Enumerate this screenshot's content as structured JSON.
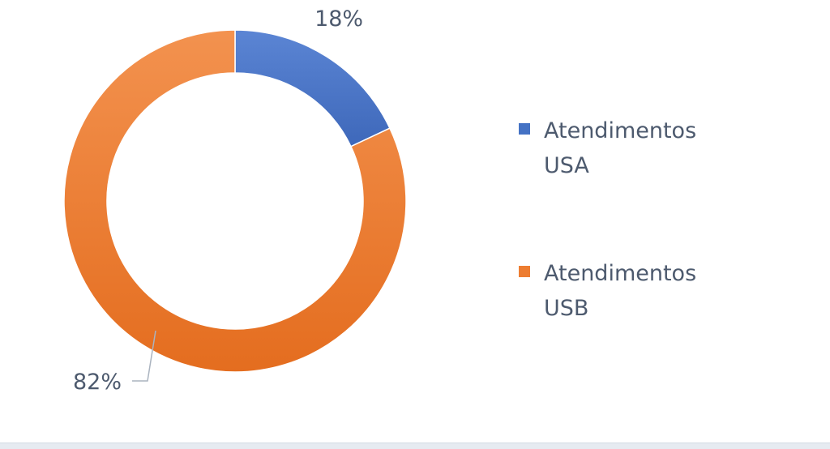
{
  "chart_data": {
    "type": "donut",
    "title": "",
    "categories": [
      "Atendimentos USA",
      "Atendimentos USB"
    ],
    "values": [
      18,
      82
    ],
    "value_labels": [
      "18%",
      "82%"
    ],
    "unit": "%",
    "colors": [
      "#4472c4",
      "#ed7d31"
    ],
    "legend": {
      "placement": "right",
      "entries": [
        {
          "line1": "Atendimentos",
          "line2": "USA",
          "color": "#4472c4"
        },
        {
          "line1": "Atendimentos",
          "line2": "USB",
          "color": "#ed7d31"
        }
      ]
    }
  }
}
